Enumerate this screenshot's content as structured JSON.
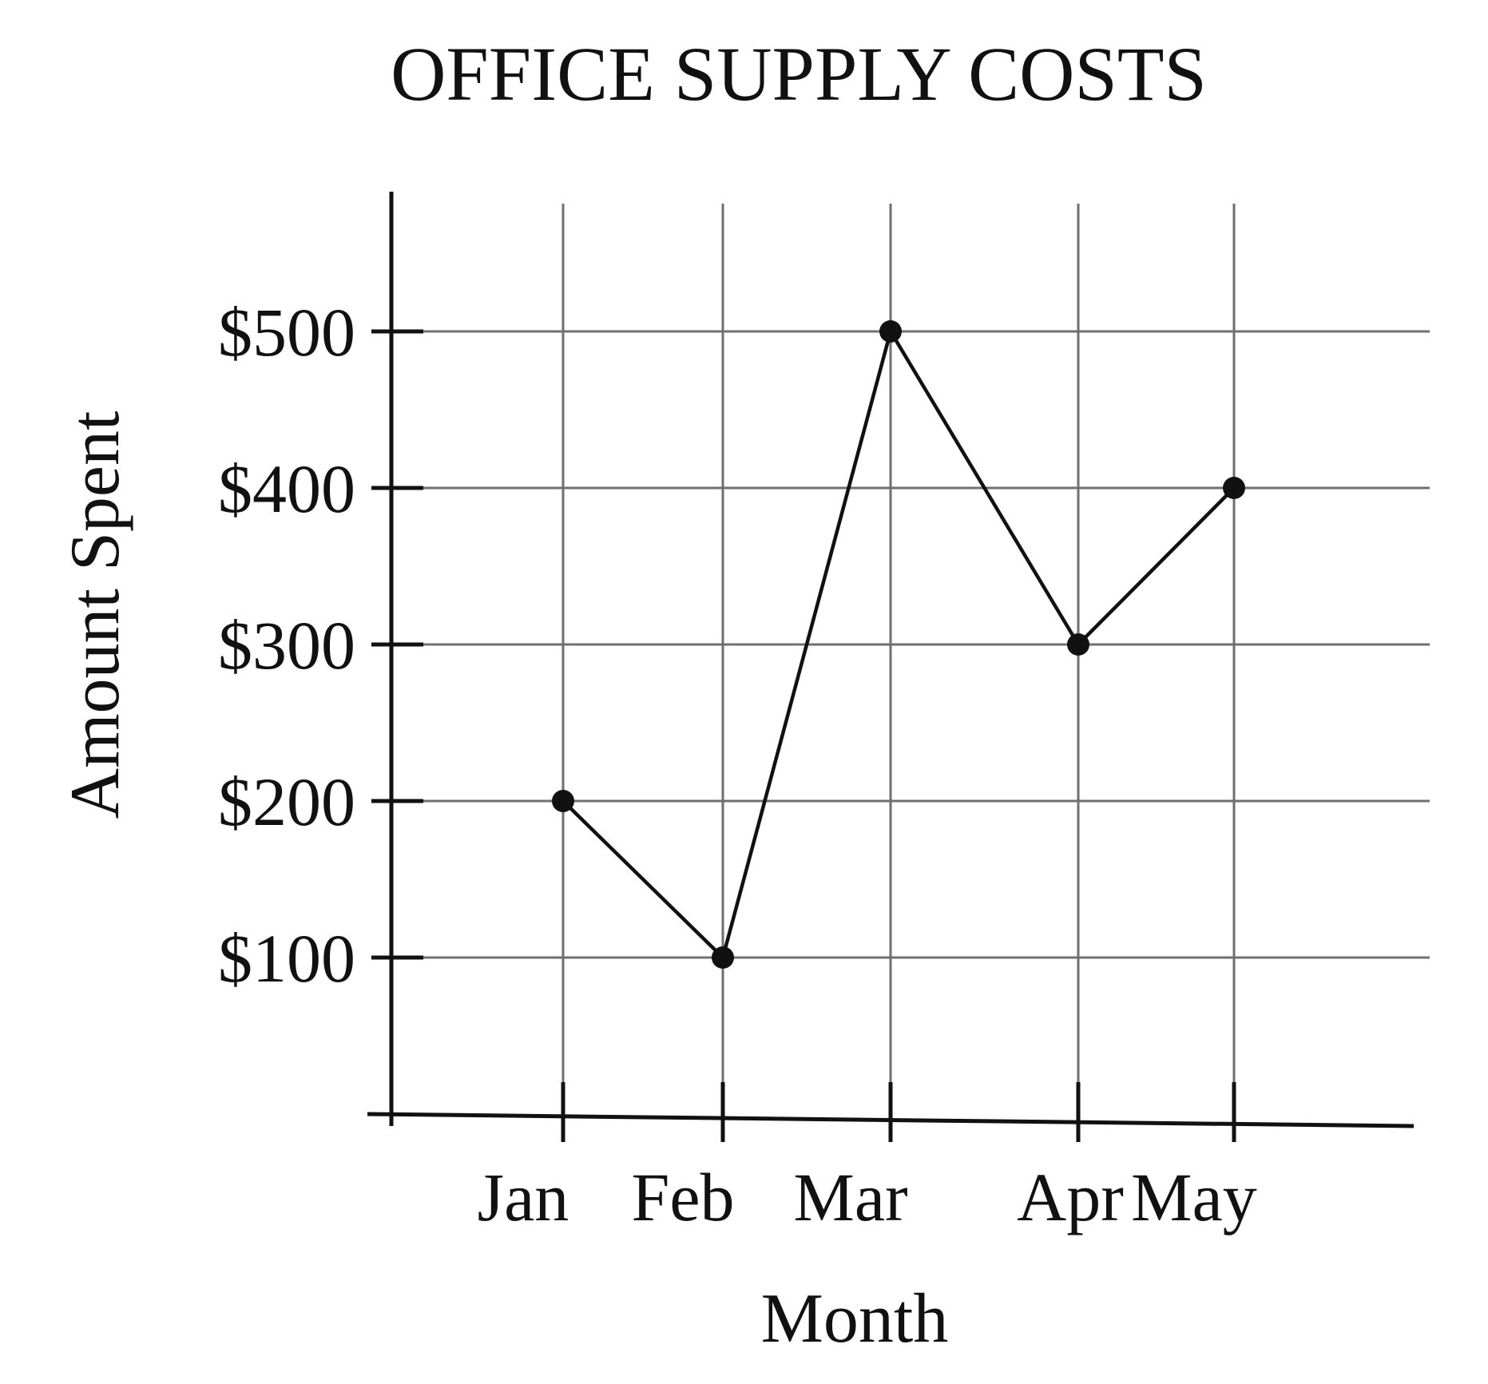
{
  "chart_data": {
    "type": "line",
    "title": "OFFICE SUPPLY COSTS",
    "xlabel": "Month",
    "ylabel": "Amount Spent",
    "categories": [
      "Jan",
      "Feb",
      "Mar",
      "Apr",
      "May"
    ],
    "series": [
      {
        "values": [
          200,
          100,
          500,
          300,
          400
        ]
      }
    ],
    "y_ticks": [
      100,
      200,
      300,
      400,
      500
    ],
    "y_tick_labels": [
      "$100",
      "$200",
      "$300",
      "$400",
      "$500"
    ],
    "ylim": [
      0,
      500
    ],
    "grid": true,
    "legend": "none",
    "colors": {
      "line": "#111111",
      "grid": "#6f6f6f",
      "text": "#111111"
    }
  }
}
